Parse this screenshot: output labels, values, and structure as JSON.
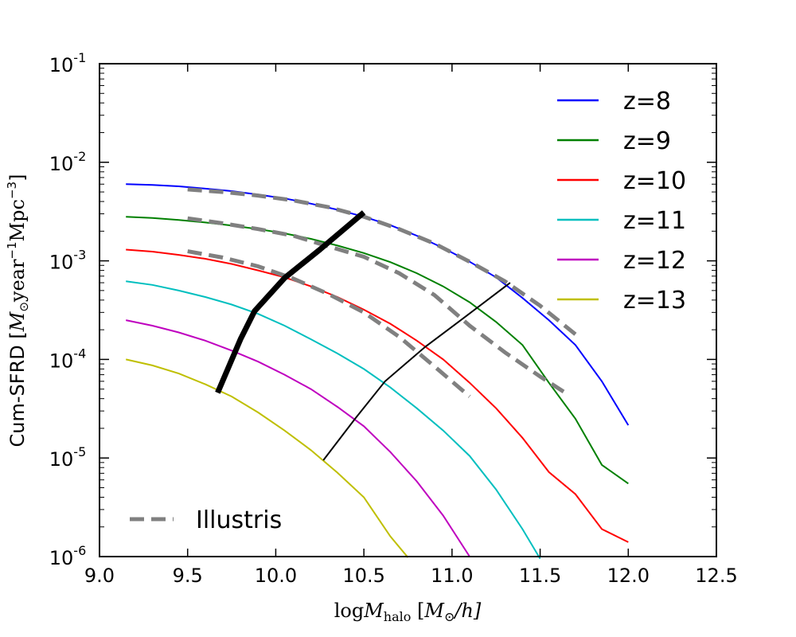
{
  "chart_data": {
    "type": "line",
    "xlabel": "log",
    "xlabel_var": "M",
    "xlabel_sub": "halo",
    "xlabel_unit_pre": " [",
    "xlabel_unit_M": "M",
    "xlabel_unit_sun": "⊙",
    "xlabel_unit_post": "/h]",
    "ylabel": "Cum-SFRD [",
    "ylabel_M": "M",
    "ylabel_sun": "⊙",
    "ylabel_year": "year",
    "ylabel_exp1": "−1",
    "ylabel_mpc": "Mpc",
    "ylabel_exp2": "−3",
    "ylabel_close": "]",
    "xlim": [
      9.0,
      12.5
    ],
    "ylim": [
      1e-06,
      0.1
    ],
    "yscale": "log",
    "x_ticks": [
      9.0,
      9.5,
      10.0,
      10.5,
      11.0,
      11.5,
      12.0,
      12.5
    ],
    "x_tick_labels": [
      "9.0",
      "9.5",
      "10.0",
      "10.5",
      "11.0",
      "11.5",
      "12.0",
      "12.5"
    ],
    "y_ticks": [
      {
        "value": 1e-06,
        "base": "10",
        "exp": "-6"
      },
      {
        "value": 1e-05,
        "base": "10",
        "exp": "-5"
      },
      {
        "value": 0.0001,
        "base": "10",
        "exp": "-4"
      },
      {
        "value": 0.001,
        "base": "10",
        "exp": "-3"
      },
      {
        "value": 0.01,
        "base": "10",
        "exp": "-2"
      },
      {
        "value": 0.1,
        "base": "10",
        "exp": "-1"
      }
    ],
    "grid": false,
    "series": [
      {
        "name": "z=8",
        "color": "#0000ff",
        "style": "solid",
        "x": [
          9.15,
          9.3,
          9.45,
          9.6,
          9.75,
          9.9,
          10.05,
          10.2,
          10.35,
          10.5,
          10.65,
          10.8,
          10.95,
          11.1,
          11.25,
          11.4,
          11.55,
          11.7,
          11.85,
          12.0
        ],
        "y": [
          0.006,
          0.0059,
          0.0057,
          0.0054,
          0.0051,
          0.0047,
          0.0043,
          0.0038,
          0.0033,
          0.0028,
          0.0023,
          0.0018,
          0.00135,
          0.00098,
          0.00068,
          0.00042,
          0.00025,
          0.00014,
          6e-05,
          2.15e-05
        ]
      },
      {
        "name": "z=9",
        "color": "#008000",
        "style": "solid",
        "x": [
          9.15,
          9.3,
          9.45,
          9.6,
          9.75,
          9.9,
          10.05,
          10.2,
          10.35,
          10.5,
          10.65,
          10.8,
          10.95,
          11.1,
          11.25,
          11.4,
          11.55,
          11.7,
          11.85,
          12.0
        ],
        "y": [
          0.0028,
          0.00272,
          0.0026,
          0.00245,
          0.00228,
          0.0021,
          0.0019,
          0.00167,
          0.00143,
          0.0012,
          0.00097,
          0.00075,
          0.00055,
          0.00038,
          0.00024,
          0.00014,
          5.8e-05,
          2.5e-05,
          8.5e-06,
          5.5e-06
        ]
      },
      {
        "name": "z=10",
        "color": "#ff0000",
        "style": "solid",
        "x": [
          9.15,
          9.3,
          9.45,
          9.6,
          9.75,
          9.9,
          10.05,
          10.2,
          10.35,
          10.5,
          10.65,
          10.8,
          10.95,
          11.1,
          11.25,
          11.4,
          11.55,
          11.7,
          11.85,
          12.0
        ],
        "y": [
          0.0013,
          0.00124,
          0.00115,
          0.00105,
          0.00093,
          0.0008,
          0.00068,
          0.00055,
          0.00043,
          0.00032,
          0.00023,
          0.000155,
          0.0001,
          5.8e-05,
          3.2e-05,
          1.6e-05,
          7.2e-06,
          4.3e-06,
          1.9e-06,
          1.4e-06
        ]
      },
      {
        "name": "z=11",
        "color": "#00bfbf",
        "style": "solid",
        "x": [
          9.15,
          9.3,
          9.45,
          9.6,
          9.75,
          9.9,
          10.05,
          10.2,
          10.35,
          10.5,
          10.65,
          10.8,
          10.95,
          11.1,
          11.25,
          11.4,
          11.5
        ],
        "y": [
          0.00062,
          0.00057,
          0.0005,
          0.00043,
          0.00036,
          0.00029,
          0.00022,
          0.00016,
          0.000115,
          8e-05,
          5.2e-05,
          3.2e-05,
          1.9e-05,
          1.05e-05,
          4.8e-06,
          1.9e-06,
          9.5e-07
        ]
      },
      {
        "name": "z=12",
        "color": "#bf00bf",
        "style": "solid",
        "x": [
          9.15,
          9.3,
          9.45,
          9.6,
          9.75,
          9.9,
          10.05,
          10.2,
          10.35,
          10.5,
          10.65,
          10.8,
          10.95,
          11.1
        ],
        "y": [
          0.00025,
          0.00022,
          0.000188,
          0.000155,
          0.000123,
          9.5e-05,
          7e-05,
          5e-05,
          3.3e-05,
          2.1e-05,
          1.15e-05,
          5.8e-06,
          2.6e-06,
          1e-06
        ]
      },
      {
        "name": "z=13",
        "color": "#bfbf00",
        "style": "solid",
        "x": [
          9.15,
          9.3,
          9.45,
          9.6,
          9.75,
          9.9,
          10.05,
          10.2,
          10.35,
          10.5,
          10.65,
          10.75
        ],
        "y": [
          0.0001,
          8.7e-05,
          7.2e-05,
          5.6e-05,
          4.2e-05,
          2.9e-05,
          1.9e-05,
          1.2e-05,
          7.1e-06,
          4e-06,
          1.6e-06,
          9.8e-07
        ]
      },
      {
        "name": "Illustris",
        "color": "#808080",
        "style": "dashed",
        "x": [
          9.5,
          9.7,
          9.9,
          10.1,
          10.3,
          10.5,
          10.7,
          10.9,
          11.1,
          11.3,
          11.5,
          11.7
        ],
        "y": [
          0.0053,
          0.005,
          0.0046,
          0.0041,
          0.0035,
          0.0028,
          0.0021,
          0.0015,
          0.00098,
          0.00062,
          0.00035,
          0.00018
        ]
      },
      {
        "name": "",
        "color": "#808080",
        "style": "dashed",
        "x": [
          9.5,
          9.7,
          9.9,
          10.1,
          10.3,
          10.5,
          10.7,
          10.9,
          11.1,
          11.3,
          11.5,
          11.65
        ],
        "y": [
          0.0027,
          0.0024,
          0.0021,
          0.0018,
          0.0014,
          0.0011,
          0.00075,
          0.00045,
          0.00022,
          0.000118,
          6.7e-05,
          4.5e-05
        ]
      },
      {
        "name": "",
        "color": "#808080",
        "style": "dashed",
        "x": [
          9.5,
          9.7,
          9.9,
          10.1,
          10.3,
          10.5,
          10.7,
          10.9,
          11.1
        ],
        "y": [
          0.00125,
          0.00108,
          0.00088,
          0.00066,
          0.00046,
          0.0003,
          0.00017,
          8.5e-05,
          4.2e-05
        ]
      },
      {
        "name": "",
        "color": "#000000",
        "style": "thick",
        "x": [
          9.67,
          9.8,
          9.88,
          10.05,
          10.25,
          10.5
        ],
        "y": [
          4.6e-05,
          0.00016,
          0.00031,
          0.00067,
          0.0013,
          0.0031
        ]
      },
      {
        "name": "",
        "color": "#000000",
        "style": "thin",
        "x": [
          10.27,
          10.45,
          10.62,
          10.85,
          11.05,
          11.33
        ],
        "y": [
          9.5e-06,
          2.5e-05,
          6e-05,
          0.000135,
          0.00025,
          0.0006
        ]
      }
    ],
    "legend": {
      "placement": "top-right",
      "entries": [
        {
          "label": "z=8",
          "color": "#0000ff",
          "style": "solid"
        },
        {
          "label": "z=9",
          "color": "#008000",
          "style": "solid"
        },
        {
          "label": "z=10",
          "color": "#ff0000",
          "style": "solid"
        },
        {
          "label": "z=11",
          "color": "#00bfbf",
          "style": "solid"
        },
        {
          "label": "z=12",
          "color": "#bf00bf",
          "style": "solid"
        },
        {
          "label": "z=13",
          "color": "#bfbf00",
          "style": "solid"
        }
      ]
    },
    "legend2": {
      "placement": "bottom-left",
      "entries": [
        {
          "label": "Illustris",
          "color": "#808080",
          "style": "dashed"
        }
      ]
    }
  }
}
